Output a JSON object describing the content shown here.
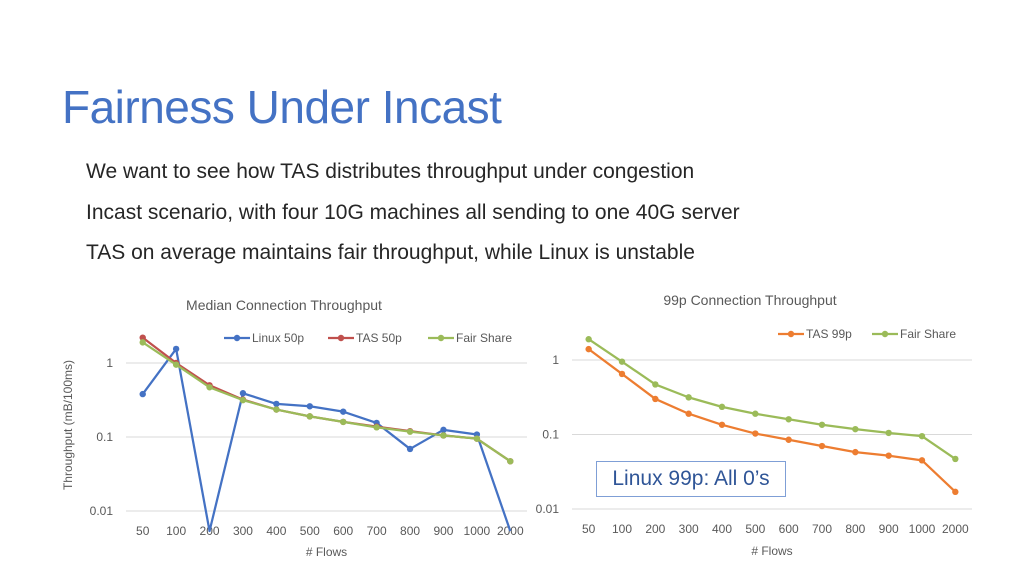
{
  "slide": {
    "title": "Fairness Under Incast",
    "bullets": [
      "We want to see how TAS distributes throughput under congestion",
      "Incast scenario, with four 10G machines all sending to one 40G server",
      "TAS on average maintains fair throughput, while Linux is unstable"
    ],
    "callout": "Linux 99p: All 0’s"
  },
  "colors": {
    "title": "#4472c4",
    "linux": "#4472c4",
    "tas_median": "#c0504d",
    "tas_99p": "#ed7d31",
    "fair_share": "#9bbb59",
    "gridline": "#d9d9d9"
  },
  "chart_data": [
    {
      "type": "line",
      "title": "Median Connection Throughput",
      "xlabel": "# Flows",
      "ylabel": "Throughput (mB/100ms)",
      "yscale": "log",
      "ylim": [
        0.01,
        1
      ],
      "yticks": [
        "1",
        "0.1",
        "0.01"
      ],
      "categories": [
        "50",
        "100",
        "200",
        "300",
        "400",
        "500",
        "600",
        "700",
        "800",
        "900",
        "1000",
        "2000"
      ],
      "legend": "top",
      "grid": true,
      "series": [
        {
          "name": "Linux 50p",
          "color": "#4472c4",
          "values": [
            0.38,
            1.55,
            0,
            0.39,
            0.28,
            0.26,
            0.22,
            0.155,
            0.069,
            0.125,
            0.108,
            0
          ]
        },
        {
          "name": "TAS 50p",
          "color": "#c0504d",
          "values": [
            2.2,
            1.0,
            0.5,
            0.32,
            0.235,
            0.19,
            0.16,
            0.138,
            0.12,
            0.105,
            0.095,
            0.047
          ]
        },
        {
          "name": "Fair Share",
          "color": "#9bbb59",
          "values": [
            1.9,
            0.95,
            0.47,
            0.315,
            0.235,
            0.19,
            0.16,
            0.135,
            0.118,
            0.105,
            0.095,
            0.047
          ]
        }
      ]
    },
    {
      "type": "line",
      "title": "99p Connection Throughput",
      "xlabel": "# Flows",
      "ylabel": "",
      "yscale": "log",
      "ylim": [
        0.01,
        1
      ],
      "yticks": [
        "1",
        "0.1",
        "0.01"
      ],
      "categories": [
        "50",
        "100",
        "200",
        "300",
        "400",
        "500",
        "600",
        "700",
        "800",
        "900",
        "1000",
        "2000"
      ],
      "legend": "top-right",
      "grid": true,
      "series": [
        {
          "name": "TAS 99p",
          "color": "#ed7d31",
          "values": [
            1.4,
            0.65,
            0.3,
            0.19,
            0.135,
            0.103,
            0.085,
            0.07,
            0.058,
            0.052,
            0.045,
            0.017
          ]
        },
        {
          "name": "Fair Share",
          "color": "#9bbb59",
          "values": [
            1.9,
            0.95,
            0.47,
            0.315,
            0.235,
            0.19,
            0.16,
            0.135,
            0.118,
            0.105,
            0.095,
            0.047
          ]
        }
      ]
    }
  ]
}
